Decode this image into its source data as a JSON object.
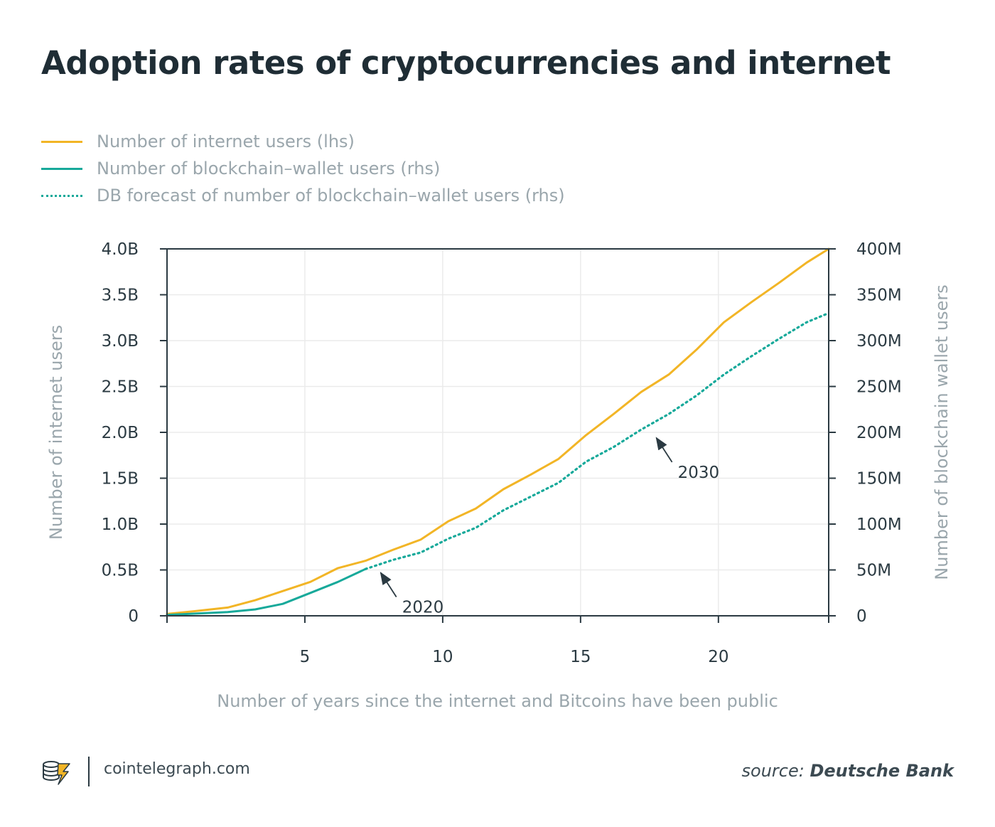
{
  "title": "Adoption rates of cryptocurrencies and internet",
  "legend": [
    {
      "label": "Number of internet users (lhs)",
      "color": "#f2b526",
      "style": "solid"
    },
    {
      "label": "Number of blockchain–wallet users (rhs)",
      "color": "#17a99a",
      "style": "solid"
    },
    {
      "label": "DB forecast of number of blockchain–wallet users (rhs)",
      "color": "#17a99a",
      "style": "dotted"
    }
  ],
  "footer": {
    "site": "cointelegraph.com",
    "source_prefix": "source:",
    "source_name": "Deutsche Bank",
    "logo_icon": "cointelegraph-logo-icon"
  },
  "chart_data": {
    "type": "line",
    "title": "Adoption rates of cryptocurrencies and internet",
    "xlabel": "Number of years since the internet and Bitcoins have been public",
    "ylabel_left": "Number of internet users",
    "ylabel_right": "Number of blockchain wallet users",
    "xlim": [
      0,
      24
    ],
    "x_ticks": [
      5,
      10,
      15,
      20
    ],
    "x_tick_labels": [
      "5",
      "10",
      "15",
      "20"
    ],
    "ylim_left": [
      0,
      4.0
    ],
    "y_ticks_left": [
      0,
      0.5,
      1.0,
      1.5,
      2.0,
      2.5,
      3.0,
      3.5,
      4.0
    ],
    "y_tick_labels_left": [
      "0",
      "0.5B",
      "1.0B",
      "1.5B",
      "2.0B",
      "2.5B",
      "3.0B",
      "3.5B",
      "4.0B"
    ],
    "ylim_right": [
      0,
      400
    ],
    "y_tick_labels_right": [
      "0",
      "50M",
      "100M",
      "150M",
      "200M",
      "250M",
      "300M",
      "350M",
      "400M"
    ],
    "grid": true,
    "series": [
      {
        "name": "Number of internet users (lhs)",
        "axis": "left",
        "color": "#f2b526",
        "style": "solid",
        "x": [
          0,
          1,
          2.2,
          3.2,
          4.2,
          5.2,
          6.2,
          7.2,
          8.2,
          9.2,
          10.2,
          11.2,
          12.2,
          13.2,
          14.2,
          15.2,
          16.2,
          17.2,
          18.2,
          19.2,
          20.2,
          21.2,
          22.2,
          23.2,
          24
        ],
        "values": [
          0.02,
          0.05,
          0.09,
          0.17,
          0.27,
          0.37,
          0.52,
          0.6,
          0.72,
          0.83,
          1.03,
          1.17,
          1.38,
          1.54,
          1.71,
          1.97,
          2.2,
          2.44,
          2.63,
          2.9,
          3.2,
          3.42,
          3.63,
          3.85,
          4.0
        ]
      },
      {
        "name": "Number of blockchain–wallet users (rhs)",
        "axis": "right",
        "color": "#17a99a",
        "style": "solid",
        "x": [
          0,
          2.2,
          3.2,
          4.2,
          5.2,
          6.2,
          7.2
        ],
        "values": [
          1,
          4,
          7,
          13,
          25,
          37,
          51
        ]
      },
      {
        "name": "DB forecast of number of blockchain–wallet users (rhs)",
        "axis": "right",
        "color": "#17a99a",
        "style": "dotted",
        "x": [
          7.2,
          8.2,
          9.2,
          10.2,
          11.2,
          12.2,
          13.2,
          14.2,
          15.2,
          16.2,
          17.2,
          18.2,
          19.2,
          20.2,
          21.2,
          22.2,
          23.2,
          24
        ],
        "values": [
          51,
          61,
          69,
          84,
          96,
          115,
          130,
          145,
          168,
          184,
          203,
          220,
          240,
          263,
          283,
          302,
          320,
          330
        ]
      }
    ],
    "annotations": [
      {
        "text": "2020",
        "x": 7.7,
        "y_right": 50
      },
      {
        "text": "2030",
        "x": 17.7,
        "y_right": 197
      }
    ]
  }
}
